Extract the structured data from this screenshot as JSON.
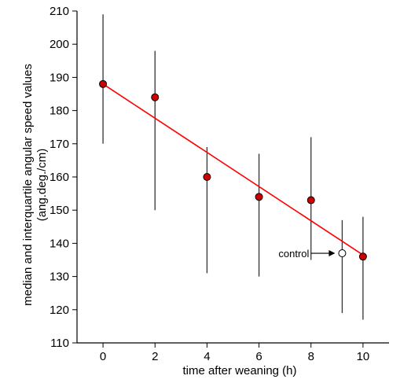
{
  "chart_data": {
    "type": "scatter",
    "xlabel": "time after weaning (h)",
    "ylabel_lines": [
      "median and interquartile angular speed values",
      "(ang.deg./cm)"
    ],
    "xlim": [
      -1,
      11
    ],
    "ylim": [
      110,
      210
    ],
    "x_ticks": [
      0,
      2,
      4,
      6,
      8,
      10
    ],
    "y_ticks": [
      110,
      120,
      130,
      140,
      150,
      160,
      170,
      180,
      190,
      200,
      210
    ],
    "grid": false,
    "points": [
      {
        "x": 0,
        "median": 188,
        "lower": 170,
        "upper": 209
      },
      {
        "x": 2,
        "median": 184,
        "lower": 150,
        "upper": 198
      },
      {
        "x": 4,
        "median": 160,
        "lower": 131,
        "upper": 169
      },
      {
        "x": 6,
        "median": 154,
        "lower": 130,
        "upper": 167
      },
      {
        "x": 8,
        "median": 153,
        "lower": 135,
        "upper": 172
      },
      {
        "x": 10,
        "median": 136,
        "lower": 117,
        "upper": 148
      }
    ],
    "control": {
      "label": "control",
      "x": 9.2,
      "median": 137,
      "lower": 119,
      "upper": 147
    },
    "fit_line": {
      "x": [
        0,
        10
      ],
      "y": [
        188,
        136.5
      ]
    },
    "colors": {
      "point_fill": "#cc0000",
      "point_stroke": "#000000",
      "fit_line": "#ff0000",
      "error_bar": "#333333",
      "control_fill": "#ffffff",
      "axis": "#000000"
    }
  }
}
